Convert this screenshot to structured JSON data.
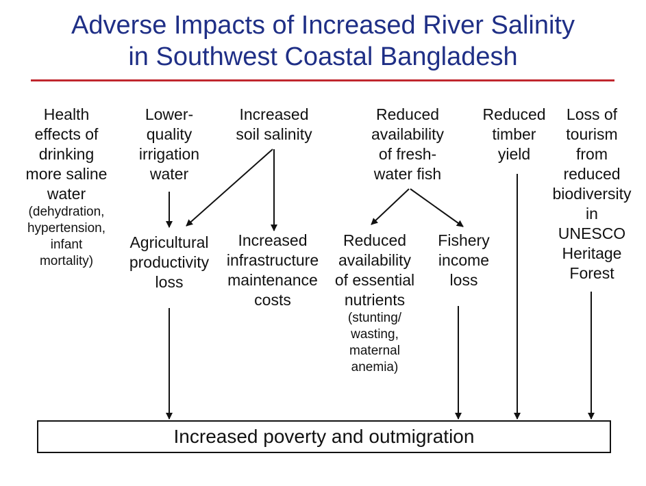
{
  "title_line1": "Adverse Impacts of Increased River Salinity",
  "title_line2": "in Southwest Coastal Bangladesh",
  "nodes": {
    "health": {
      "text": "Health\neffects of\ndrinking\nmore saline\nwater",
      "sub": "(dehydration,\nhypertension,\ninfant\nmortality)"
    },
    "irrigation": {
      "text": "Lower-\nquality\nirrigation\nwater"
    },
    "soil_salinity": {
      "text": "Increased\nsoil salinity"
    },
    "fish": {
      "text": "Reduced\navailability\nof fresh-\nwater fish"
    },
    "timber": {
      "text": "Reduced\ntimber\nyield"
    },
    "tourism": {
      "text": "Loss of\ntourism\nfrom\nreduced\nbiodiversity\nin\nUNESCO\nHeritage\nForest"
    },
    "agri_loss": {
      "text": "Agricultural\nproductivity\nloss"
    },
    "infrastructure": {
      "text": "Increased\ninfrastructure\nmaintenance\ncosts"
    },
    "nutrients": {
      "text": "Reduced\navailability\nof essential\nnutrients",
      "sub": "(stunting/\nwasting,\nmaternal\nanemia)"
    },
    "fishery_income": {
      "text": "Fishery\nincome\nloss"
    }
  },
  "outcome": "Increased poverty and outmigration"
}
